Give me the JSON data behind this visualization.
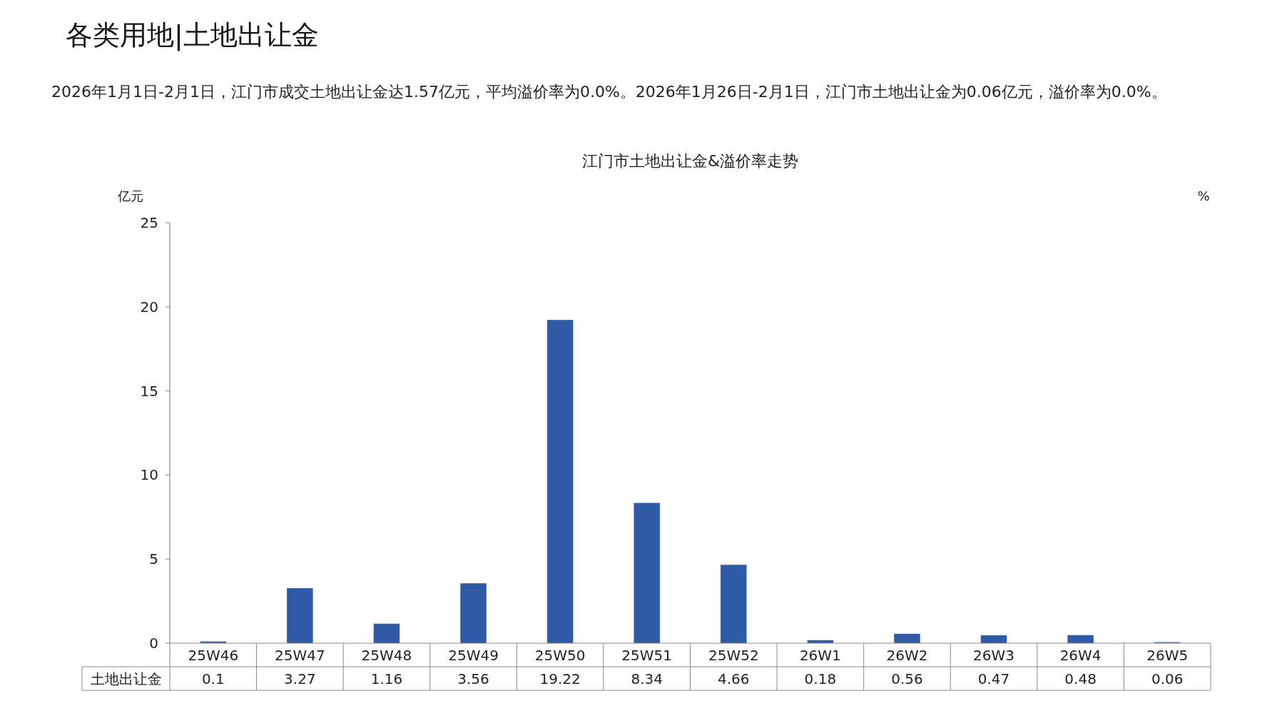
{
  "chart_data": {
    "type": "bar",
    "title": "江门市土地出让金&溢价率走势",
    "annotations": [
      "各类用地|土地出让金",
      "2026年1月1日-2月1日，江门市成交土地出让金达1.57亿元，平均溢价率为0.0%。2026年1月26日-2月1日，江门市土地出让金为0.06亿元，溢价率为0.0%。"
    ],
    "ylabel": "亿元",
    "y2label": "%",
    "categories": [
      "25W46",
      "25W47",
      "25W48",
      "25W49",
      "25W50",
      "25W51",
      "25W52",
      "26W1",
      "26W2",
      "26W3",
      "26W4",
      "26W5"
    ],
    "series": [
      {
        "name": "土地出让金",
        "color": "#2f5aa8",
        "values": [
          0.1,
          3.27,
          1.16,
          3.56,
          19.22,
          8.34,
          4.66,
          0.18,
          0.56,
          0.47,
          0.48,
          0.06
        ]
      }
    ],
    "ylim": [
      0,
      25
    ],
    "yticks": [
      0,
      5,
      10,
      15,
      20,
      25
    ],
    "data_labels": true
  }
}
